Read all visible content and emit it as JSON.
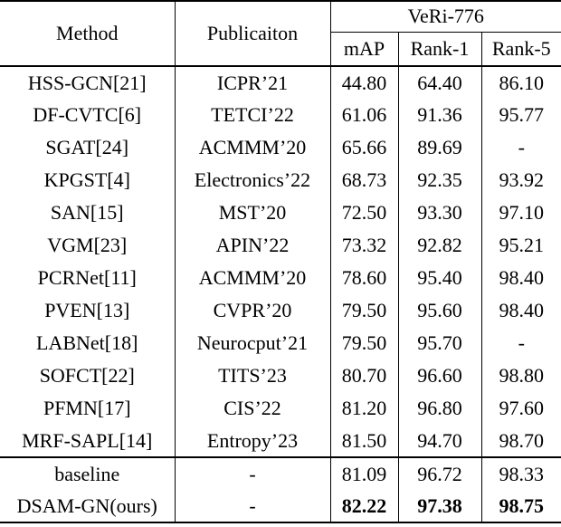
{
  "table": {
    "header": {
      "method": "Method",
      "publication": "Publicaiton",
      "dataset_group": "VeRi-776",
      "metrics": [
        "mAP",
        "Rank-1",
        "Rank-5"
      ]
    },
    "rows": [
      {
        "method": "HSS-GCN[21]",
        "publication": "ICPR’21",
        "map": "44.80",
        "rank1": "64.40",
        "rank5": "86.10"
      },
      {
        "method": "DF-CVTC[6]",
        "publication": "TETCI’22",
        "map": "61.06",
        "rank1": "91.36",
        "rank5": "95.77"
      },
      {
        "method": "SGAT[24]",
        "publication": "ACMMM’20",
        "map": "65.66",
        "rank1": "89.69",
        "rank5": "-"
      },
      {
        "method": "KPGST[4]",
        "publication": "Electronics’22",
        "map": "68.73",
        "rank1": "92.35",
        "rank5": "93.92"
      },
      {
        "method": "SAN[15]",
        "publication": "MST’20",
        "map": "72.50",
        "rank1": "93.30",
        "rank5": "97.10"
      },
      {
        "method": "VGM[23]",
        "publication": "APIN’22",
        "map": "73.32",
        "rank1": "92.82",
        "rank5": "95.21"
      },
      {
        "method": "PCRNet[11]",
        "publication": "ACMMM’20",
        "map": "78.60",
        "rank1": "95.40",
        "rank5": "98.40"
      },
      {
        "method": "PVEN[13]",
        "publication": "CVPR’20",
        "map": "79.50",
        "rank1": "95.60",
        "rank5": "98.40"
      },
      {
        "method": "LABNet[18]",
        "publication": "Neurocput’21",
        "map": "79.50",
        "rank1": "95.70",
        "rank5": "-"
      },
      {
        "method": "SOFCT[22]",
        "publication": "TITS’23",
        "map": "80.70",
        "rank1": "96.60",
        "rank5": "98.80"
      },
      {
        "method": "PFMN[17]",
        "publication": "CIS’22",
        "map": "81.20",
        "rank1": "96.80",
        "rank5": "97.60"
      },
      {
        "method": "MRF-SAPL[14]",
        "publication": "Entropy’23",
        "map": "81.50",
        "rank1": "94.70",
        "rank5": "98.70"
      }
    ],
    "summary_rows": [
      {
        "method": "baseline",
        "publication": "-",
        "map": "81.09",
        "rank1": "96.72",
        "rank5": "98.33",
        "bold_values": false
      },
      {
        "method": "DSAM-GN(ours)",
        "publication": "-",
        "map": "82.22",
        "rank1": "97.38",
        "rank5": "98.75",
        "bold_values": true
      }
    ]
  },
  "colors": {
    "text": "#000000",
    "background": "#ffffff",
    "rule": "#000000"
  }
}
